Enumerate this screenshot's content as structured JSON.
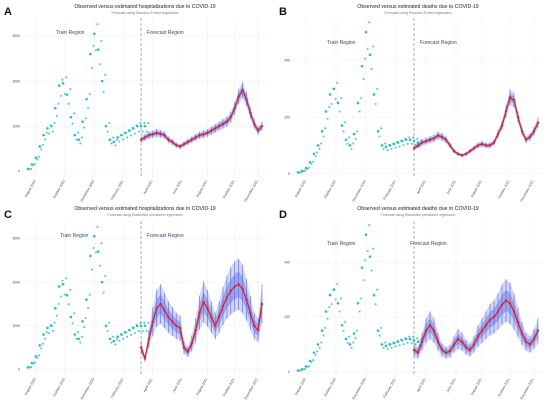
{
  "colors": {
    "observed": "#2bbcc4",
    "forecast_line": "#d7262e",
    "forecast_band": "#5a68e0",
    "grid": "#ececec",
    "divider": "#999999"
  },
  "x_tick_labels": [
    "August 2020",
    "October 2020",
    "December 2020",
    "February 2021",
    "April 2021",
    "June 2021",
    "August 2021",
    "October 2021",
    "December 2021"
  ],
  "panels": [
    {
      "letter": "A",
      "title": "Observed versus estimated hospitalizations due to COVID-19",
      "subtitle": "Forecast using Random Forest regression",
      "train_label": "Train Region",
      "forecast_label": "Forecast Region",
      "y_ticks": [
        0,
        1000,
        2000,
        3000
      ]
    },
    {
      "letter": "B",
      "title": "Observed versus estimated deaths due to COVID-19",
      "subtitle": "Forecast using Random Forest regression",
      "train_label": "Train Region",
      "forecast_label": "Forecast Region",
      "y_ticks": [
        0,
        200,
        400
      ]
    },
    {
      "letter": "C",
      "title": "Observed versus estimated hospitalizations due to COVID-19",
      "subtitle": "Forecast using ElasticNet penalized regression",
      "train_label": "Train Region",
      "forecast_label": "Forecast Region",
      "y_ticks": [
        0,
        1000,
        2000,
        3000
      ]
    },
    {
      "letter": "D",
      "title": "Observed versus estimated deaths due to COVID-19",
      "subtitle": "Forecast using ElasticNet penalized regression",
      "train_label": "Train Region",
      "forecast_label": "Forecast Region",
      "y_ticks": [
        0,
        200,
        400
      ]
    }
  ],
  "chart_data": [
    {
      "type": "line",
      "panel": "A",
      "ylim": [
        -150,
        3400
      ],
      "series": [
        {
          "kind": "observed",
          "x": [
            0,
            1,
            2,
            3,
            4,
            5,
            6,
            7,
            8,
            9,
            10,
            11,
            12,
            13,
            14,
            15,
            16,
            17,
            18,
            19,
            20,
            21,
            22,
            23,
            24,
            25,
            26,
            27,
            28,
            29,
            30
          ],
          "y": [
            50,
            150,
            300,
            550,
            800,
            950,
            1000,
            1400,
            1900,
            1950,
            1700,
            1200,
            800,
            700,
            1100,
            1600,
            2600,
            3050,
            2700,
            2000,
            1000,
            700,
            650,
            750,
            800,
            850,
            900,
            950,
            1000,
            1000,
            1000
          ]
        },
        {
          "kind": "forecast",
          "band": "narrow",
          "x": [
            29,
            30,
            31,
            32,
            33,
            34,
            35,
            36,
            37,
            38,
            39,
            40,
            41,
            42,
            43,
            44,
            45,
            46,
            47,
            48,
            49,
            50,
            51,
            52,
            53,
            54,
            55,
            56,
            57,
            58,
            59,
            60
          ],
          "y": [
            700,
            750,
            800,
            820,
            850,
            830,
            800,
            700,
            650,
            580,
            550,
            600,
            650,
            700,
            750,
            800,
            820,
            850,
            900,
            950,
            1000,
            1050,
            1100,
            1200,
            1400,
            1650,
            1800,
            1600,
            1300,
            1050,
            900,
            1000
          ]
        }
      ]
    },
    {
      "type": "line",
      "panel": "B",
      "ylim": [
        -15,
        550
      ],
      "series": [
        {
          "kind": "observed",
          "x": [
            0,
            1,
            2,
            3,
            4,
            5,
            6,
            7,
            8,
            9,
            10,
            11,
            12,
            13,
            14,
            15,
            16,
            17,
            18,
            19,
            20,
            21,
            22,
            23,
            24,
            25,
            26,
            27,
            28,
            29,
            30
          ],
          "y": [
            5,
            10,
            20,
            40,
            70,
            100,
            150,
            220,
            280,
            300,
            250,
            170,
            120,
            100,
            140,
            250,
            380,
            500,
            420,
            280,
            150,
            100,
            95,
            100,
            105,
            110,
            115,
            120,
            120,
            115,
            110
          ]
        },
        {
          "kind": "forecast",
          "band": "narrow",
          "x": [
            29,
            30,
            31,
            32,
            33,
            34,
            35,
            36,
            37,
            38,
            39,
            40,
            41,
            42,
            43,
            44,
            45,
            46,
            47,
            48,
            49,
            50,
            51,
            52,
            53,
            54,
            55,
            56,
            57,
            58,
            59,
            60
          ],
          "y": [
            90,
            100,
            110,
            115,
            120,
            125,
            135,
            130,
            120,
            100,
            80,
            70,
            65,
            70,
            80,
            90,
            100,
            105,
            100,
            100,
            110,
            140,
            170,
            220,
            270,
            260,
            200,
            150,
            120,
            130,
            150,
            180
          ]
        }
      ]
    },
    {
      "type": "line",
      "panel": "C",
      "ylim": [
        -150,
        3400
      ],
      "series": [
        {
          "kind": "observed",
          "x": [
            0,
            1,
            2,
            3,
            4,
            5,
            6,
            7,
            8,
            9,
            10,
            11,
            12,
            13,
            14,
            15,
            16,
            17,
            18,
            19,
            20,
            21,
            22,
            23,
            24,
            25,
            26,
            27,
            28,
            29,
            30
          ],
          "y": [
            50,
            150,
            300,
            550,
            800,
            950,
            1000,
            1400,
            1900,
            1950,
            1700,
            1200,
            800,
            700,
            1100,
            1600,
            2600,
            3050,
            2700,
            2000,
            1000,
            700,
            650,
            750,
            800,
            850,
            900,
            950,
            1000,
            1000,
            1000
          ]
        },
        {
          "kind": "forecast",
          "band": "wide",
          "x": [
            29,
            30,
            31,
            32,
            33,
            34,
            35,
            36,
            37,
            38,
            39,
            40,
            41,
            42,
            43,
            44,
            45,
            46,
            47,
            48,
            49,
            50,
            51,
            52,
            53,
            54,
            55,
            56,
            57,
            58,
            59,
            60
          ],
          "y": [
            500,
            250,
            700,
            1100,
            1400,
            1500,
            1350,
            1200,
            1100,
            1000,
            950,
            500,
            400,
            600,
            900,
            1300,
            1550,
            1400,
            1200,
            1000,
            1200,
            1450,
            1650,
            1800,
            1900,
            1950,
            1850,
            1600,
            1300,
            1000,
            900,
            1500
          ]
        }
      ]
    },
    {
      "type": "line",
      "panel": "D",
      "ylim": [
        -15,
        550
      ],
      "series": [
        {
          "kind": "observed",
          "x": [
            0,
            1,
            2,
            3,
            4,
            5,
            6,
            7,
            8,
            9,
            10,
            11,
            12,
            13,
            14,
            15,
            16,
            17,
            18,
            19,
            20,
            21,
            22,
            23,
            24,
            25,
            26,
            27,
            28,
            29,
            30
          ],
          "y": [
            5,
            10,
            20,
            40,
            70,
            100,
            150,
            220,
            280,
            300,
            250,
            170,
            120,
            100,
            140,
            250,
            380,
            500,
            420,
            280,
            150,
            100,
            95,
            100,
            105,
            110,
            115,
            120,
            120,
            115,
            110
          ]
        },
        {
          "kind": "forecast",
          "band": "wide",
          "x": [
            29,
            30,
            31,
            32,
            33,
            34,
            35,
            36,
            37,
            38,
            39,
            40,
            41,
            42,
            43,
            44,
            45,
            46,
            47,
            48,
            49,
            50,
            51,
            52,
            53,
            54,
            55,
            56,
            57,
            58,
            59,
            60
          ],
          "y": [
            80,
            70,
            110,
            150,
            170,
            150,
            110,
            80,
            70,
            75,
            100,
            120,
            110,
            90,
            80,
            100,
            130,
            150,
            170,
            190,
            200,
            220,
            245,
            260,
            250,
            220,
            180,
            140,
            110,
            100,
            120,
            150
          ]
        }
      ]
    }
  ]
}
